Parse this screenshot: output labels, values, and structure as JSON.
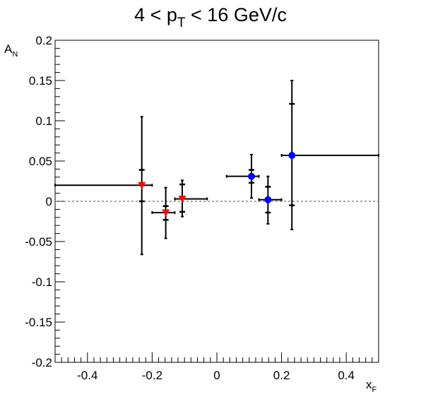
{
  "chart_data": {
    "type": "scatter",
    "title_parts": {
      "pre": "4 < p",
      "sub": "T",
      "post": " < 16 GeV/c"
    },
    "xlabel": {
      "main": "x",
      "sub": "F"
    },
    "ylabel": {
      "main": "A",
      "sub": "N"
    },
    "xlim": [
      -0.5,
      0.5
    ],
    "ylim": [
      -0.2,
      0.2
    ],
    "x_ticks": [
      -0.4,
      -0.2,
      0,
      0.2,
      0.4
    ],
    "x_tick_labels": [
      "-0.4",
      "-0.2",
      "0",
      "0.2",
      "0.4"
    ],
    "y_ticks": [
      -0.2,
      -0.15,
      -0.1,
      -0.05,
      0,
      0.05,
      0.1,
      0.15,
      0.2
    ],
    "y_tick_labels": [
      "-0.2",
      "-0.15",
      "-0.1",
      "-0.05",
      "0",
      "0.05",
      "0.1",
      "0.15",
      "0.2"
    ],
    "reference_line_y": 0,
    "series": [
      {
        "marker": "triangle-down",
        "color": "#ff0000",
        "points": [
          {
            "x": -0.232,
            "y": 0.02,
            "xerr_lo": 0.268,
            "xerr_hi": 0.032,
            "stat_lo": 0.086,
            "stat_hi": 0.085,
            "sys_lo": 0.02,
            "sys_hi": 0.019
          },
          {
            "x": -0.158,
            "y": -0.014,
            "xerr_lo": 0.042,
            "xerr_hi": 0.028,
            "stat_lo": 0.032,
            "stat_hi": 0.031,
            "sys_lo": 0.009,
            "sys_hi": 0.008
          },
          {
            "x": -0.107,
            "y": 0.003,
            "xerr_lo": 0.023,
            "xerr_hi": 0.077,
            "stat_lo": 0.022,
            "stat_hi": 0.023,
            "sys_lo": 0.016,
            "sys_hi": 0.018
          }
        ]
      },
      {
        "marker": "circle",
        "color": "#0000ff",
        "points": [
          {
            "x": 0.107,
            "y": 0.031,
            "xerr_lo": 0.077,
            "xerr_hi": 0.023,
            "stat_lo": 0.027,
            "stat_hi": 0.027,
            "sys_lo": 0.008,
            "sys_hi": 0.008
          },
          {
            "x": 0.158,
            "y": 0.002,
            "xerr_lo": 0.028,
            "xerr_hi": 0.042,
            "stat_lo": 0.03,
            "stat_hi": 0.029,
            "sys_lo": 0.016,
            "sys_hi": 0.016
          },
          {
            "x": 0.232,
            "y": 0.057,
            "xerr_lo": 0.032,
            "xerr_hi": 0.268,
            "stat_lo": 0.092,
            "stat_hi": 0.093,
            "sys_lo": 0.062,
            "sys_hi": 0.064
          }
        ]
      }
    ]
  }
}
